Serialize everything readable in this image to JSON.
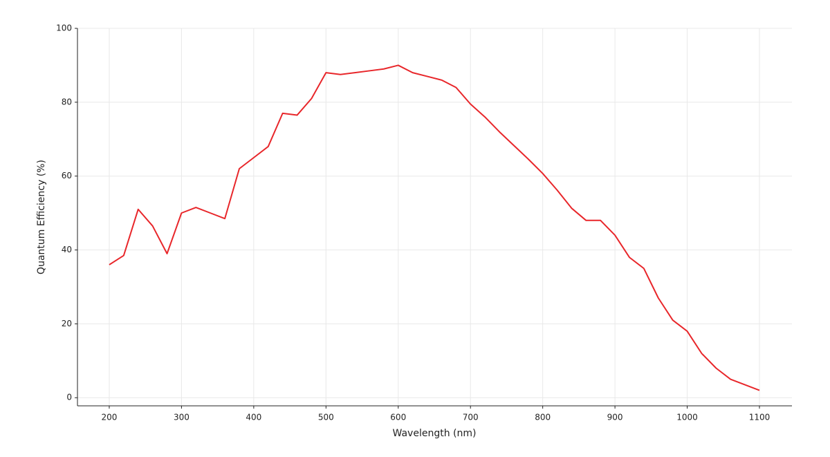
{
  "chart_data": {
    "type": "line",
    "xlabel": "Wavelength (nm)",
    "ylabel": "Quantum Efficiency (%)",
    "x": [
      200,
      220,
      240,
      260,
      280,
      300,
      320,
      340,
      360,
      380,
      400,
      420,
      440,
      460,
      480,
      500,
      520,
      540,
      560,
      580,
      600,
      620,
      640,
      660,
      680,
      700,
      720,
      740,
      760,
      780,
      800,
      820,
      840,
      860,
      880,
      900,
      920,
      940,
      960,
      980,
      1000,
      1020,
      1040,
      1060,
      1080,
      1100
    ],
    "series": [
      {
        "color": "#e8262a",
        "values": [
          36,
          38.5,
          51,
          46.5,
          39,
          50,
          51.5,
          50,
          48.5,
          62,
          65,
          68,
          77,
          76.5,
          81,
          88,
          87.5,
          88,
          88.5,
          89,
          90,
          88,
          87,
          86,
          84,
          79.5,
          76,
          72,
          68.3,
          64.6,
          60.7,
          56.2,
          51.3,
          48,
          48,
          44,
          38,
          35,
          27,
          21,
          18,
          12,
          8,
          5,
          3.5,
          2
        ]
      }
    ],
    "xlim": [
      156,
      1145
    ],
    "xticks": [
      200,
      300,
      400,
      500,
      600,
      700,
      800,
      900,
      1000,
      1100
    ],
    "ylim": [
      -2.2,
      100
    ],
    "yticks": [
      0,
      20,
      40,
      60,
      80,
      100
    ],
    "grid": true
  }
}
